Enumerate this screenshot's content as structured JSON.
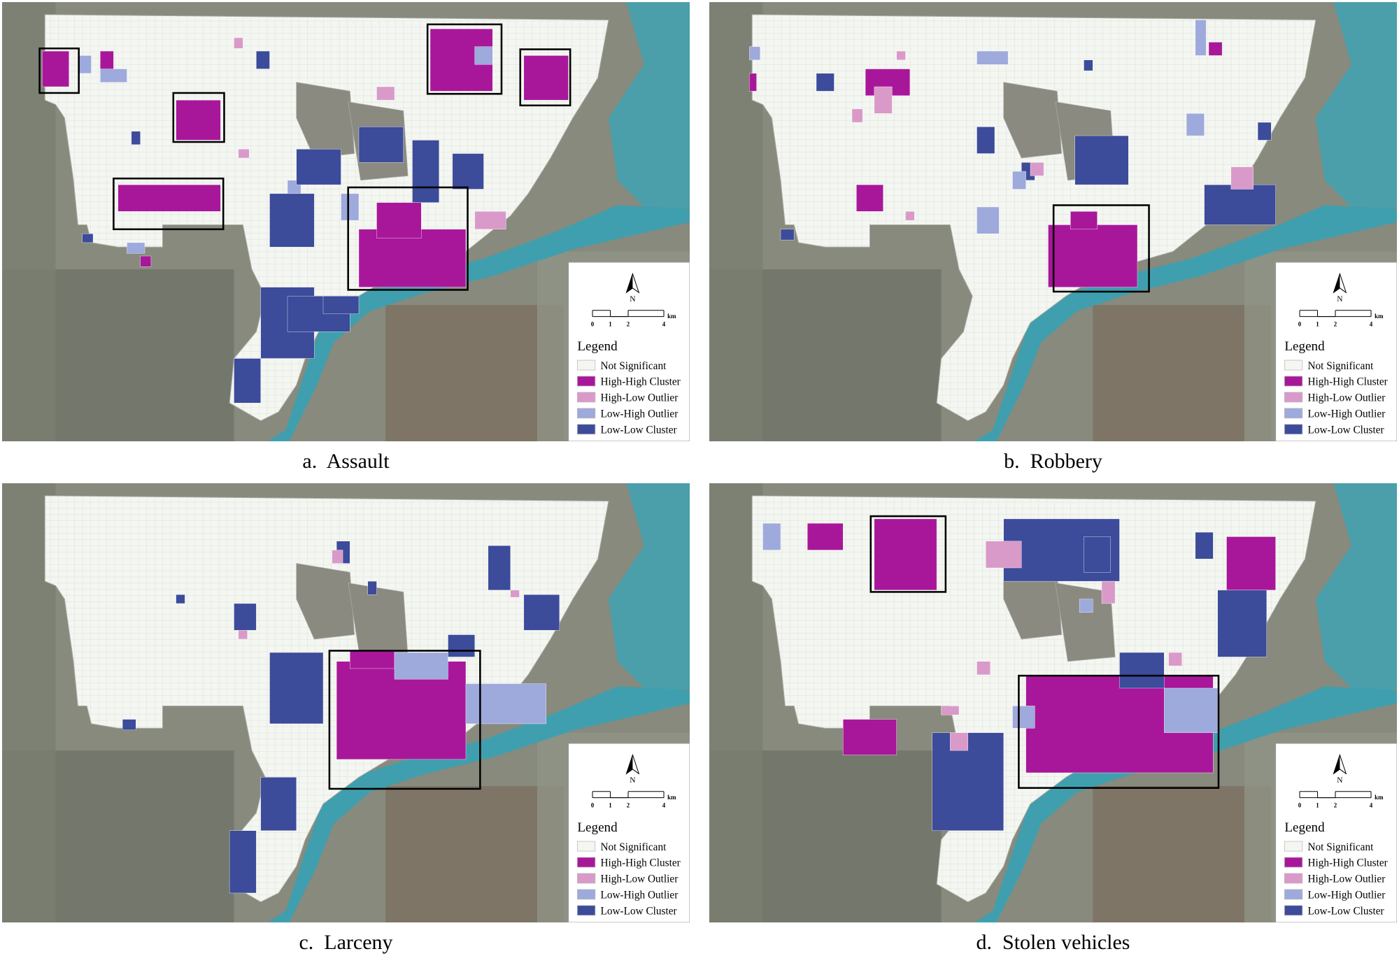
{
  "panels": [
    {
      "caption": "a.  Assault"
    },
    {
      "caption": "b.  Robbery"
    },
    {
      "caption": "c.  Larceny"
    },
    {
      "caption": "d.  Stolen vehicles"
    }
  ],
  "north": "N",
  "scale": {
    "ticks": [
      0,
      1,
      2,
      4
    ],
    "unit": "km"
  },
  "legend": {
    "title": "Legend",
    "items": [
      {
        "label": "Not Significant",
        "color": "#f4f6f1"
      },
      {
        "label": "High-High Cluster",
        "color": "#a8179a"
      },
      {
        "label": "High-Low Outlier",
        "color": "#d99ac9"
      },
      {
        "label": "Low-High Outlier",
        "color": "#9ea9dc"
      },
      {
        "label": "Low-Low Cluster",
        "color": "#3c4b9a"
      }
    ]
  }
}
